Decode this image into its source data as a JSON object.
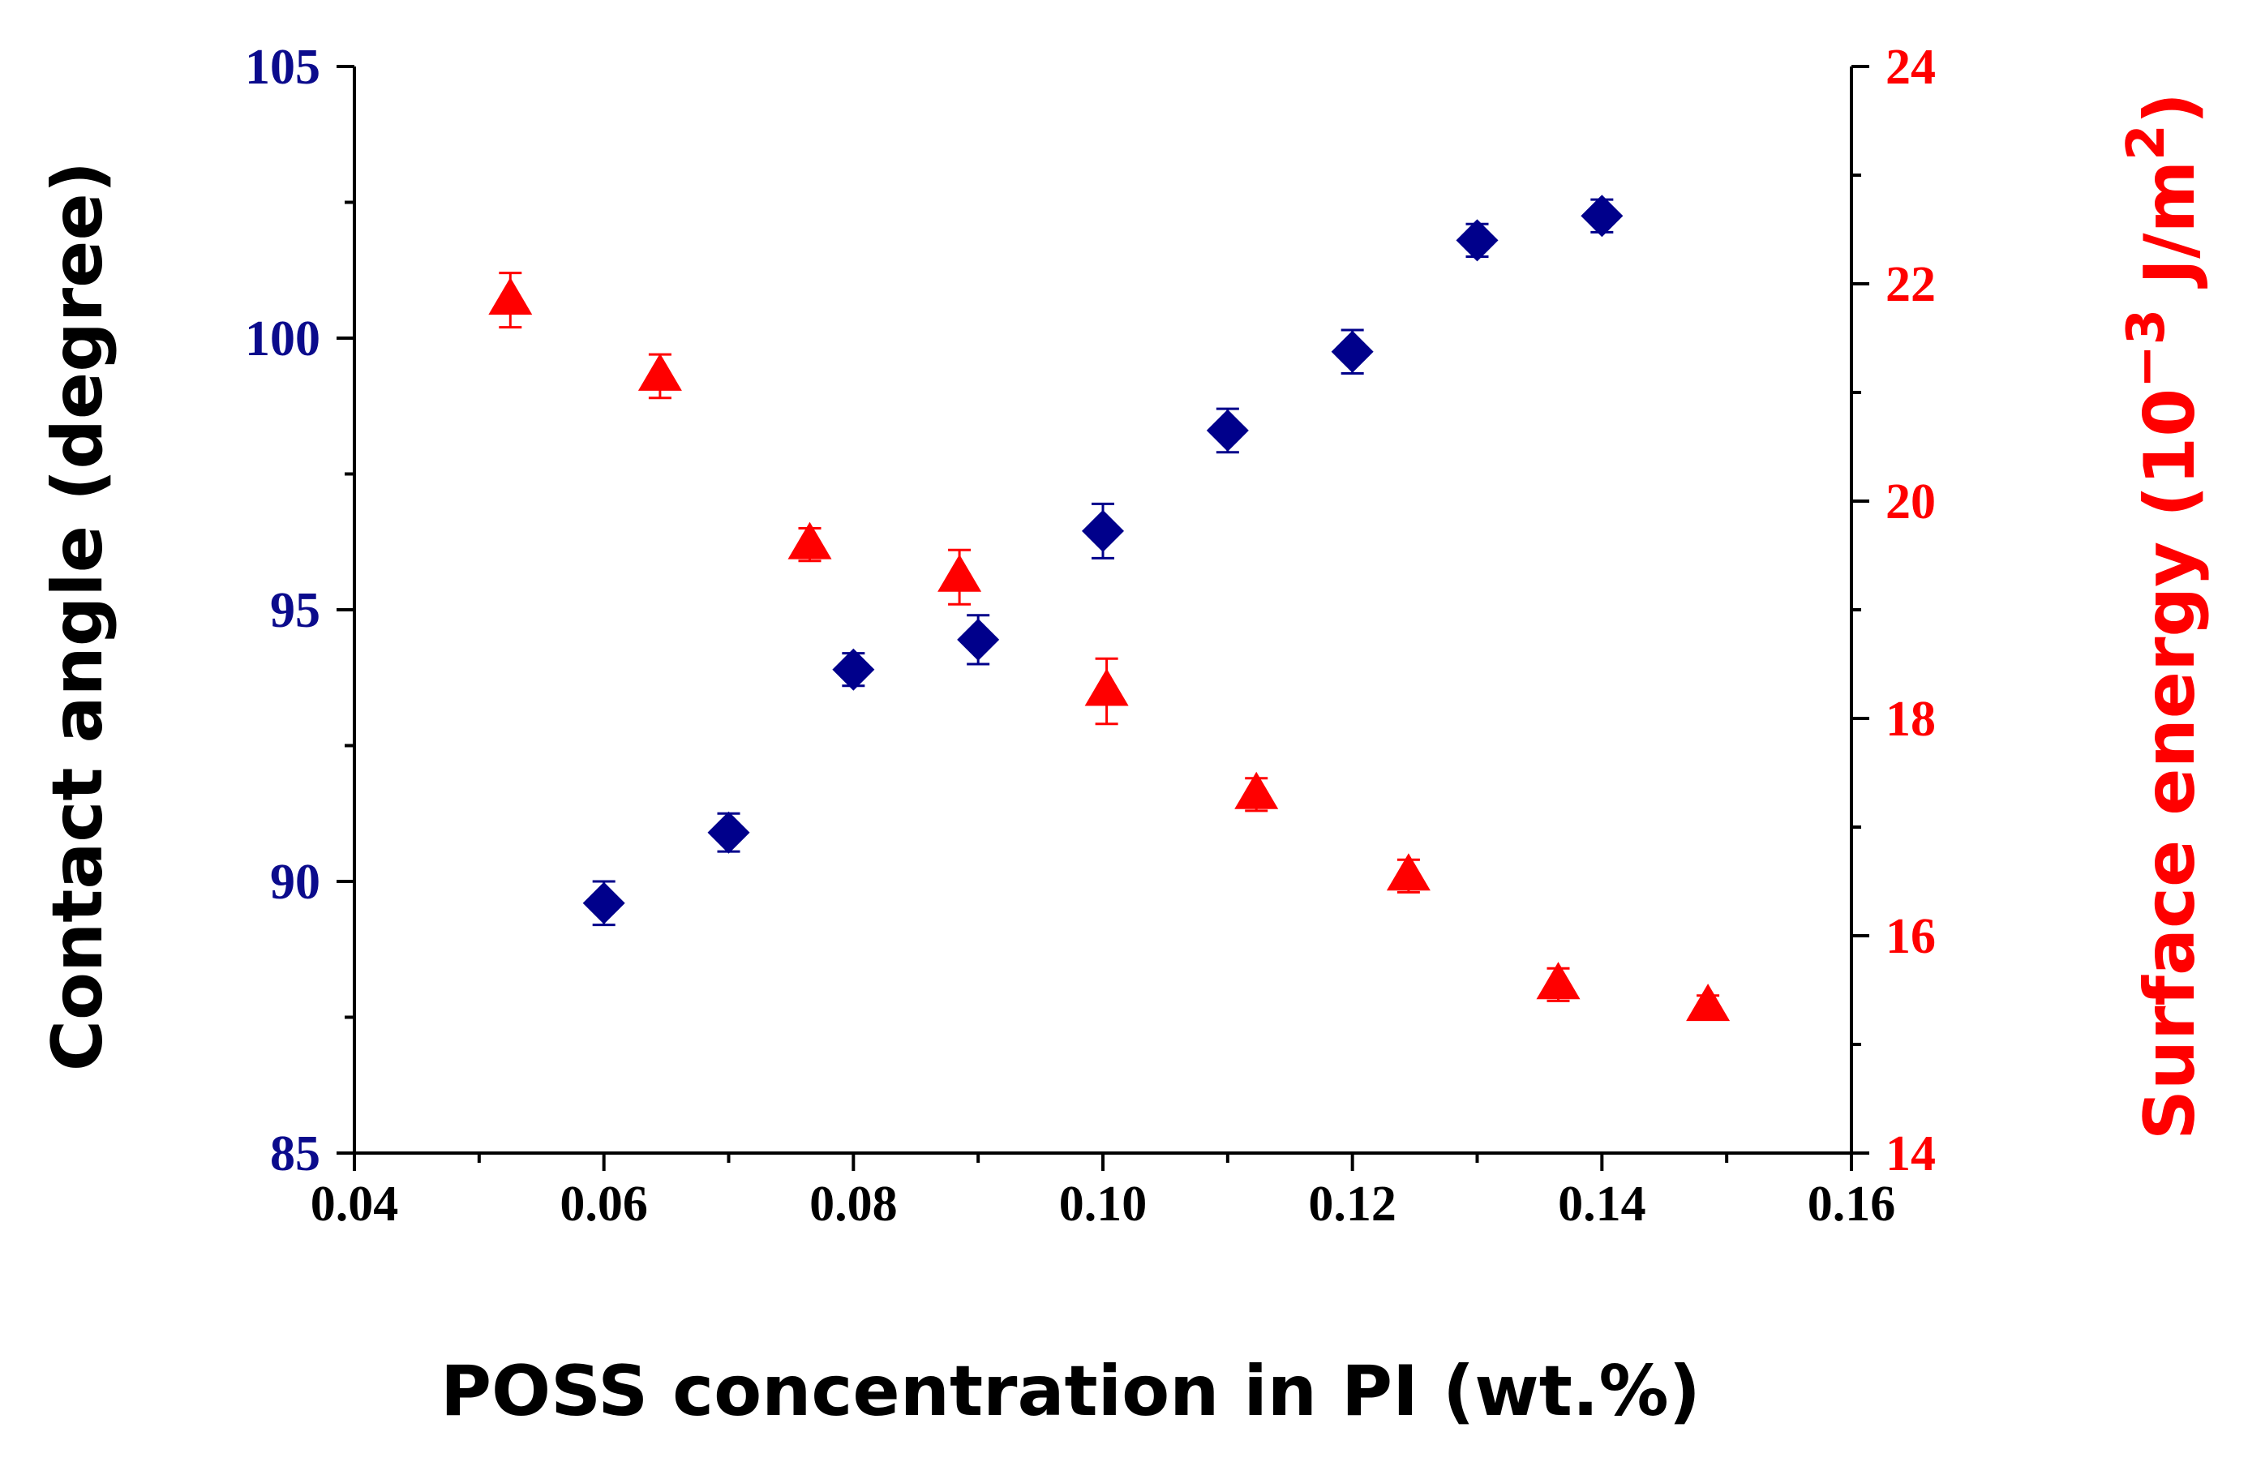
{
  "chart_data": {
    "type": "scatter",
    "xlabel": "POSS concentration in PI (wt.%)",
    "xlim": [
      0.04,
      0.16
    ],
    "xticks": [
      "0.04",
      "0.06",
      "0.08",
      "0.10",
      "0.12",
      "0.14",
      "0.16"
    ],
    "y_left": {
      "label": "Contact angle (degree)",
      "lim": [
        85,
        105
      ],
      "ticks": [
        "85",
        "90",
        "95",
        "100",
        "105"
      ],
      "color": "#0b0b8c"
    },
    "y_right": {
      "label_main": "Surface energy (10",
      "label_exp1": "−3",
      "label_mid": " J/m",
      "label_exp2": "2",
      "label_end": ")",
      "lim": [
        14,
        24
      ],
      "ticks": [
        "14",
        "16",
        "18",
        "20",
        "22",
        "24"
      ],
      "color": "#ff0000"
    },
    "series": [
      {
        "name": "Contact angle",
        "axis": "left",
        "marker": "diamond",
        "color": "#00008b",
        "x": [
          0.06,
          0.07,
          0.08,
          0.09,
          0.1,
          0.11,
          0.12,
          0.13,
          0.14
        ],
        "y": [
          89.6,
          90.9,
          93.9,
          94.45,
          96.45,
          98.3,
          99.75,
          101.8,
          102.25
        ],
        "err": [
          0.4,
          0.35,
          0.3,
          0.45,
          0.5,
          0.4,
          0.4,
          0.3,
          0.3
        ]
      },
      {
        "name": "Surface energy",
        "axis": "right",
        "marker": "triangle",
        "color": "#ff0000",
        "x": [
          0.0525,
          0.0645,
          0.0765,
          0.0885,
          0.1003,
          0.1123,
          0.1245,
          0.1365,
          0.1485
        ],
        "y": [
          21.85,
          21.15,
          19.6,
          19.3,
          18.25,
          17.3,
          16.55,
          15.55,
          15.35
        ],
        "err": [
          0.25,
          0.2,
          0.15,
          0.25,
          0.3,
          0.15,
          0.15,
          0.15,
          0.1
        ]
      }
    ]
  }
}
